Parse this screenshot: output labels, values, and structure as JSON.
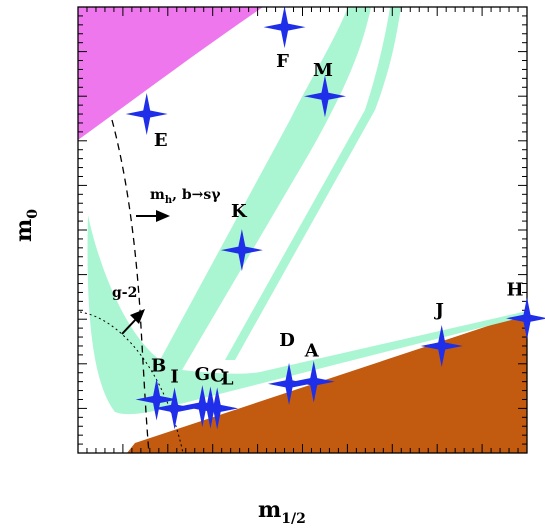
{
  "chart_data": {
    "type": "scatter",
    "title": "",
    "xlabel": "m",
    "xlabel_sub": "1/2",
    "ylabel": "m",
    "ylabel_sub": "0",
    "xlim": [
      0,
      100
    ],
    "ylim": [
      0,
      100
    ],
    "ticks_numbered": false,
    "colors": {
      "pink_region": "#ee77ee",
      "brown_region": "#c25a10",
      "green_band": "#aaf5d2",
      "star": "#1f2ee8",
      "line": "#000000"
    },
    "points": [
      {
        "label": "A",
        "x": 52.5,
        "y": 16.0
      },
      {
        "label": "B",
        "x": 17.5,
        "y": 12.0
      },
      {
        "label": "C",
        "x": 29.5,
        "y": 10.2
      },
      {
        "label": "D",
        "x": 47.0,
        "y": 15.5
      },
      {
        "label": "E",
        "x": 15.3,
        "y": 76.0
      },
      {
        "label": "F",
        "x": 46.0,
        "y": 95.5
      },
      {
        "label": "G",
        "x": 27.7,
        "y": 10.5
      },
      {
        "label": "H",
        "x": 100.0,
        "y": 30.2
      },
      {
        "label": "I",
        "x": 21.5,
        "y": 10.0
      },
      {
        "label": "J",
        "x": 81.0,
        "y": 24.0
      },
      {
        "label": "K",
        "x": 36.5,
        "y": 45.5
      },
      {
        "label": "L",
        "x": 31.0,
        "y": 10.0
      },
      {
        "label": "M",
        "x": 55.0,
        "y": 80.0
      }
    ],
    "annotations": [
      {
        "text": "m",
        "sub": "h",
        "rest": ", b→sγ"
      },
      {
        "text": "g-2"
      }
    ]
  }
}
